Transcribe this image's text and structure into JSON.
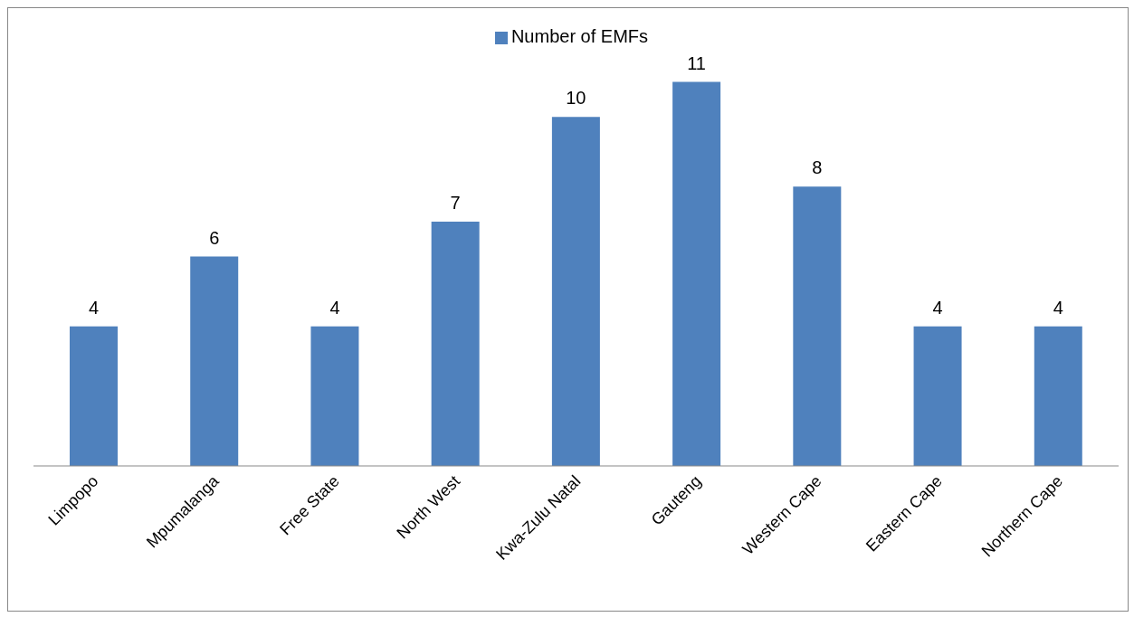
{
  "chart_data": {
    "type": "bar",
    "categories": [
      "Limpopo",
      "Mpumalanga",
      "Free State",
      "North West",
      "Kwa-Zulu Natal",
      "Gauteng",
      "Western Cape",
      "Eastern Cape",
      "Northern Cape"
    ],
    "series": [
      {
        "name": "Number of EMFs",
        "color": "#4f81bd",
        "values": [
          4,
          6,
          4,
          7,
          10,
          11,
          8,
          4,
          4
        ]
      }
    ],
    "data_labels": true,
    "legend": "top",
    "grid": false
  }
}
